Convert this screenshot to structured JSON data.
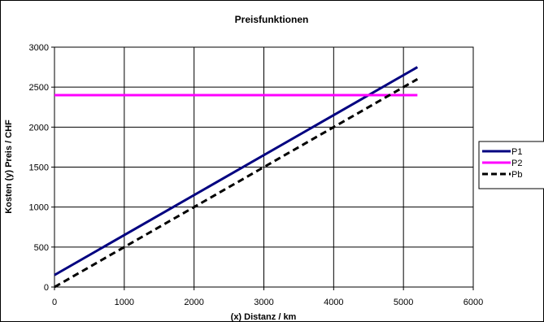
{
  "chart_data": {
    "type": "line",
    "title": "Preisfunktionen",
    "xlabel": "(x) Distanz / km",
    "ylabel": "Kosten (y) Preis / CHF",
    "xlim": [
      0,
      6000
    ],
    "ylim": [
      0,
      3000
    ],
    "x_ticks": [
      "0",
      "1000",
      "2000",
      "3000",
      "4000",
      "5000",
      "6000"
    ],
    "y_ticks": [
      "0",
      "500",
      "1000",
      "1500",
      "2000",
      "2500",
      "3000"
    ],
    "grid": true,
    "legend_position": "right",
    "series": [
      {
        "name": "P1",
        "color": "#000080",
        "style": "solid",
        "x": [
          0,
          5200
        ],
        "y": [
          150,
          2750
        ]
      },
      {
        "name": "P2",
        "color": "#FF00FF",
        "style": "solid",
        "x": [
          0,
          5200
        ],
        "y": [
          2400,
          2400
        ]
      },
      {
        "name": "Pb",
        "color": "#000000",
        "style": "dashed",
        "x": [
          0,
          5200
        ],
        "y": [
          0,
          2600
        ]
      }
    ]
  }
}
